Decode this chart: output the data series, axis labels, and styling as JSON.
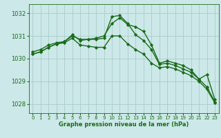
{
  "background_color": "#cce8e8",
  "grid_color": "#aacccc",
  "line_color": "#1a6b1a",
  "xlabel": "Graphe pression niveau de la mer (hPa)",
  "ylim": [
    1027.6,
    1032.4
  ],
  "xlim": [
    -0.5,
    23.5
  ],
  "yticks": [
    1028,
    1029,
    1030,
    1031,
    1032
  ],
  "xticks": [
    0,
    1,
    2,
    3,
    4,
    5,
    6,
    7,
    8,
    9,
    10,
    11,
    12,
    13,
    14,
    15,
    16,
    17,
    18,
    19,
    20,
    21,
    22,
    23
  ],
  "series": [
    {
      "x": [
        0,
        1,
        2,
        3,
        4,
        5,
        6,
        7,
        8,
        9,
        10,
        11,
        12,
        13,
        14,
        15,
        16,
        17,
        18,
        19,
        20,
        21,
        22,
        23
      ],
      "y": [
        1030.3,
        1030.4,
        1030.6,
        1030.7,
        1030.75,
        1031.05,
        1030.8,
        1030.85,
        1030.9,
        1031.0,
        1031.55,
        1031.8,
        1031.5,
        1031.4,
        1031.2,
        1030.6,
        1029.8,
        1029.9,
        1029.8,
        1029.7,
        1029.5,
        1029.1,
        1029.3,
        1028.2
      ],
      "marker": "D",
      "markersize": 2.2,
      "linewidth": 1.0
    },
    {
      "x": [
        0,
        1,
        2,
        3,
        4,
        5,
        6,
        7,
        8,
        9,
        10,
        11,
        12,
        13,
        14,
        15,
        16,
        17,
        18,
        19,
        20,
        21,
        22,
        23
      ],
      "y": [
        1030.2,
        1030.3,
        1030.5,
        1030.65,
        1030.75,
        1031.0,
        1030.85,
        1030.85,
        1030.85,
        1030.9,
        1031.85,
        1031.9,
        1031.55,
        1031.05,
        1030.8,
        1030.4,
        1029.75,
        1029.8,
        1029.7,
        1029.55,
        1029.4,
        1029.1,
        1028.75,
        1028.1
      ],
      "marker": "D",
      "markersize": 2.2,
      "linewidth": 1.0
    },
    {
      "x": [
        0,
        1,
        2,
        3,
        4,
        5,
        6,
        7,
        8,
        9,
        10,
        11,
        12,
        13,
        14,
        15,
        16,
        17,
        18,
        19,
        20,
        21,
        22,
        23
      ],
      "y": [
        1030.2,
        1030.3,
        1030.5,
        1030.65,
        1030.7,
        1030.9,
        1030.6,
        1030.55,
        1030.5,
        1030.5,
        1031.0,
        1031.0,
        1030.65,
        1030.4,
        1030.2,
        1029.8,
        1029.6,
        1029.65,
        1029.55,
        1029.4,
        1029.25,
        1029.0,
        1028.65,
        1028.05
      ],
      "marker": "D",
      "markersize": 2.2,
      "linewidth": 1.0
    }
  ],
  "xlabel_fontsize": 6.0,
  "ytick_fontsize": 6.0,
  "xtick_fontsize": 5.0
}
